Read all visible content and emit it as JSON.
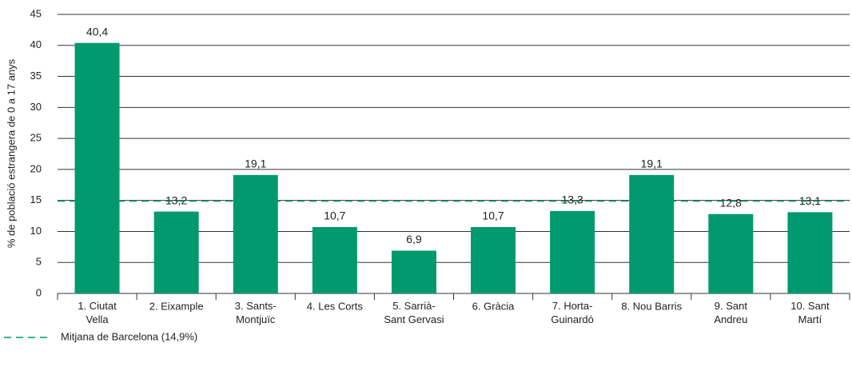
{
  "chart_data": {
    "type": "bar",
    "y_axis_label": "% de població estrangera de 0 a 17 anys",
    "categories": [
      "1. Ciutat\nVella",
      "2. Eixample",
      "3. Sants-\nMontjuïc",
      "4. Les Corts",
      "5. Sarrià-\nSant Gervasi",
      "6. Gràcia",
      "7. Horta-\nGuinardó",
      "8. Nou Barris",
      "9. Sant\nAndreu",
      "10. Sant\nMartí"
    ],
    "values": [
      40.4,
      13.2,
      19.1,
      10.7,
      6.9,
      10.7,
      13.3,
      19.1,
      12.8,
      13.1
    ],
    "value_labels": [
      "40,4",
      "13,2",
      "19,1",
      "10,7",
      "6,9",
      "10,7",
      "13,3",
      "19,1",
      "12,8",
      "13,1"
    ],
    "color": "#00996f",
    "ylim": [
      0,
      45
    ],
    "yticks": [
      0,
      5,
      10,
      15,
      20,
      25,
      30,
      35,
      40,
      45
    ],
    "grid": true,
    "reference_line": {
      "name": "Mitjana de Barcelona (14,9%)",
      "value": 14.9,
      "color": "#00996f"
    }
  }
}
